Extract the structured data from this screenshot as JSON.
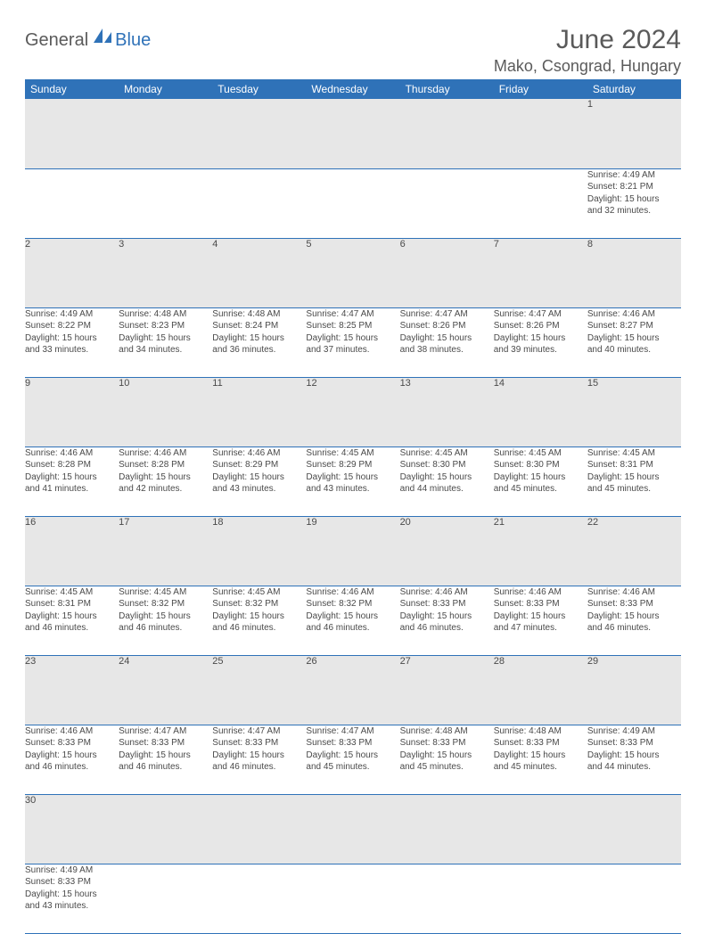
{
  "logo": {
    "text1": "General",
    "text2": "Blue",
    "shape_color": "#2f72b8"
  },
  "title": "June 2024",
  "location": "Mako, Csongrad, Hungary",
  "colors": {
    "header_bg": "#2f72b8",
    "header_text": "#ffffff",
    "daynum_bg": "#e7e7e7",
    "text": "#4a4a4a",
    "row_border": "#2f72b8",
    "page_bg": "#ffffff"
  },
  "fonts": {
    "title_size": 30,
    "location_size": 18,
    "header_size": 12,
    "daynum_size": 11,
    "detail_size": 10
  },
  "layout": {
    "columns": 7,
    "weeks": 6
  },
  "weekdays": [
    "Sunday",
    "Monday",
    "Tuesday",
    "Wednesday",
    "Thursday",
    "Friday",
    "Saturday"
  ],
  "weeks": [
    [
      null,
      null,
      null,
      null,
      null,
      null,
      {
        "n": "1",
        "sunrise": "Sunrise: 4:49 AM",
        "sunset": "Sunset: 8:21 PM",
        "daylight1": "Daylight: 15 hours",
        "daylight2": "and 32 minutes."
      }
    ],
    [
      {
        "n": "2",
        "sunrise": "Sunrise: 4:49 AM",
        "sunset": "Sunset: 8:22 PM",
        "daylight1": "Daylight: 15 hours",
        "daylight2": "and 33 minutes."
      },
      {
        "n": "3",
        "sunrise": "Sunrise: 4:48 AM",
        "sunset": "Sunset: 8:23 PM",
        "daylight1": "Daylight: 15 hours",
        "daylight2": "and 34 minutes."
      },
      {
        "n": "4",
        "sunrise": "Sunrise: 4:48 AM",
        "sunset": "Sunset: 8:24 PM",
        "daylight1": "Daylight: 15 hours",
        "daylight2": "and 36 minutes."
      },
      {
        "n": "5",
        "sunrise": "Sunrise: 4:47 AM",
        "sunset": "Sunset: 8:25 PM",
        "daylight1": "Daylight: 15 hours",
        "daylight2": "and 37 minutes."
      },
      {
        "n": "6",
        "sunrise": "Sunrise: 4:47 AM",
        "sunset": "Sunset: 8:26 PM",
        "daylight1": "Daylight: 15 hours",
        "daylight2": "and 38 minutes."
      },
      {
        "n": "7",
        "sunrise": "Sunrise: 4:47 AM",
        "sunset": "Sunset: 8:26 PM",
        "daylight1": "Daylight: 15 hours",
        "daylight2": "and 39 minutes."
      },
      {
        "n": "8",
        "sunrise": "Sunrise: 4:46 AM",
        "sunset": "Sunset: 8:27 PM",
        "daylight1": "Daylight: 15 hours",
        "daylight2": "and 40 minutes."
      }
    ],
    [
      {
        "n": "9",
        "sunrise": "Sunrise: 4:46 AM",
        "sunset": "Sunset: 8:28 PM",
        "daylight1": "Daylight: 15 hours",
        "daylight2": "and 41 minutes."
      },
      {
        "n": "10",
        "sunrise": "Sunrise: 4:46 AM",
        "sunset": "Sunset: 8:28 PM",
        "daylight1": "Daylight: 15 hours",
        "daylight2": "and 42 minutes."
      },
      {
        "n": "11",
        "sunrise": "Sunrise: 4:46 AM",
        "sunset": "Sunset: 8:29 PM",
        "daylight1": "Daylight: 15 hours",
        "daylight2": "and 43 minutes."
      },
      {
        "n": "12",
        "sunrise": "Sunrise: 4:45 AM",
        "sunset": "Sunset: 8:29 PM",
        "daylight1": "Daylight: 15 hours",
        "daylight2": "and 43 minutes."
      },
      {
        "n": "13",
        "sunrise": "Sunrise: 4:45 AM",
        "sunset": "Sunset: 8:30 PM",
        "daylight1": "Daylight: 15 hours",
        "daylight2": "and 44 minutes."
      },
      {
        "n": "14",
        "sunrise": "Sunrise: 4:45 AM",
        "sunset": "Sunset: 8:30 PM",
        "daylight1": "Daylight: 15 hours",
        "daylight2": "and 45 minutes."
      },
      {
        "n": "15",
        "sunrise": "Sunrise: 4:45 AM",
        "sunset": "Sunset: 8:31 PM",
        "daylight1": "Daylight: 15 hours",
        "daylight2": "and 45 minutes."
      }
    ],
    [
      {
        "n": "16",
        "sunrise": "Sunrise: 4:45 AM",
        "sunset": "Sunset: 8:31 PM",
        "daylight1": "Daylight: 15 hours",
        "daylight2": "and 46 minutes."
      },
      {
        "n": "17",
        "sunrise": "Sunrise: 4:45 AM",
        "sunset": "Sunset: 8:32 PM",
        "daylight1": "Daylight: 15 hours",
        "daylight2": "and 46 minutes."
      },
      {
        "n": "18",
        "sunrise": "Sunrise: 4:45 AM",
        "sunset": "Sunset: 8:32 PM",
        "daylight1": "Daylight: 15 hours",
        "daylight2": "and 46 minutes."
      },
      {
        "n": "19",
        "sunrise": "Sunrise: 4:46 AM",
        "sunset": "Sunset: 8:32 PM",
        "daylight1": "Daylight: 15 hours",
        "daylight2": "and 46 minutes."
      },
      {
        "n": "20",
        "sunrise": "Sunrise: 4:46 AM",
        "sunset": "Sunset: 8:33 PM",
        "daylight1": "Daylight: 15 hours",
        "daylight2": "and 46 minutes."
      },
      {
        "n": "21",
        "sunrise": "Sunrise: 4:46 AM",
        "sunset": "Sunset: 8:33 PM",
        "daylight1": "Daylight: 15 hours",
        "daylight2": "and 47 minutes."
      },
      {
        "n": "22",
        "sunrise": "Sunrise: 4:46 AM",
        "sunset": "Sunset: 8:33 PM",
        "daylight1": "Daylight: 15 hours",
        "daylight2": "and 46 minutes."
      }
    ],
    [
      {
        "n": "23",
        "sunrise": "Sunrise: 4:46 AM",
        "sunset": "Sunset: 8:33 PM",
        "daylight1": "Daylight: 15 hours",
        "daylight2": "and 46 minutes."
      },
      {
        "n": "24",
        "sunrise": "Sunrise: 4:47 AM",
        "sunset": "Sunset: 8:33 PM",
        "daylight1": "Daylight: 15 hours",
        "daylight2": "and 46 minutes."
      },
      {
        "n": "25",
        "sunrise": "Sunrise: 4:47 AM",
        "sunset": "Sunset: 8:33 PM",
        "daylight1": "Daylight: 15 hours",
        "daylight2": "and 46 minutes."
      },
      {
        "n": "26",
        "sunrise": "Sunrise: 4:47 AM",
        "sunset": "Sunset: 8:33 PM",
        "daylight1": "Daylight: 15 hours",
        "daylight2": "and 45 minutes."
      },
      {
        "n": "27",
        "sunrise": "Sunrise: 4:48 AM",
        "sunset": "Sunset: 8:33 PM",
        "daylight1": "Daylight: 15 hours",
        "daylight2": "and 45 minutes."
      },
      {
        "n": "28",
        "sunrise": "Sunrise: 4:48 AM",
        "sunset": "Sunset: 8:33 PM",
        "daylight1": "Daylight: 15 hours",
        "daylight2": "and 45 minutes."
      },
      {
        "n": "29",
        "sunrise": "Sunrise: 4:49 AM",
        "sunset": "Sunset: 8:33 PM",
        "daylight1": "Daylight: 15 hours",
        "daylight2": "and 44 minutes."
      }
    ],
    [
      {
        "n": "30",
        "sunrise": "Sunrise: 4:49 AM",
        "sunset": "Sunset: 8:33 PM",
        "daylight1": "Daylight: 15 hours",
        "daylight2": "and 43 minutes."
      },
      null,
      null,
      null,
      null,
      null,
      null
    ]
  ]
}
